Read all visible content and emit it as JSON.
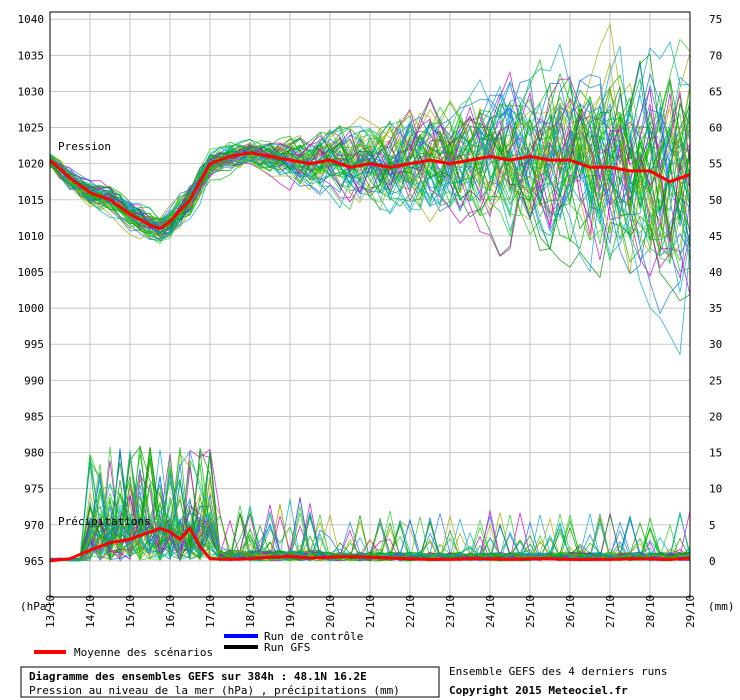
{
  "chart_data": {
    "type": "line",
    "title": "Diagramme des ensembles GEFS sur 384h : 48.1N 16.2E",
    "subtitle": "Pression au niveau de la mer (hPa) , précipitations (mm)",
    "left_axis": {
      "unit": "(hPa)",
      "ylim": [
        960,
        1041
      ],
      "ticks": [
        965,
        970,
        975,
        980,
        985,
        990,
        995,
        1000,
        1005,
        1010,
        1015,
        1020,
        1025,
        1030,
        1035,
        1040
      ]
    },
    "right_axis": {
      "unit": "(mm)",
      "ylim": [
        -5,
        76
      ],
      "ticks": [
        0,
        5,
        10,
        15,
        20,
        25,
        30,
        35,
        40,
        45,
        50,
        55,
        60,
        65,
        70,
        75
      ]
    },
    "x_axis": {
      "tick_labels": [
        "13/10",
        "14/10",
        "15/10",
        "16/10",
        "17/10",
        "18/10",
        "19/10",
        "20/10",
        "21/10",
        "22/10",
        "23/10",
        "24/10",
        "25/10",
        "26/10",
        "27/10",
        "28/10",
        "29/10"
      ],
      "day_range": [
        0,
        16
      ]
    },
    "grid": true,
    "panel_labels": {
      "pressure": "Pression",
      "precipitation": "Précipitations"
    },
    "series": [
      {
        "name": "Moyenne des scénarios",
        "color": "#ff0000",
        "axis": "left",
        "x": [
          0,
          0.5,
          1,
          1.5,
          2,
          2.5,
          2.75,
          3,
          3.5,
          4,
          4.5,
          5,
          5.5,
          6,
          6.5,
          7,
          7.5,
          8,
          8.5,
          9,
          9.5,
          10,
          10.5,
          11,
          11.5,
          12,
          12.5,
          13,
          13.5,
          14,
          14.5,
          15,
          15.5,
          16
        ],
        "values": [
          1020.5,
          1018,
          1016,
          1015,
          1013,
          1011.5,
          1011,
          1012,
          1015,
          1020,
          1021,
          1021.5,
          1021,
          1020.5,
          1020,
          1020.5,
          1019.5,
          1020,
          1019.5,
          1020,
          1020.5,
          1020,
          1020.5,
          1021,
          1020.5,
          1021,
          1020.5,
          1020.5,
          1019.5,
          1019.5,
          1019,
          1019,
          1017.5,
          1018.5
        ]
      },
      {
        "name": "Moyenne des scénarios (précipitations)",
        "color": "#ff0000",
        "axis": "right",
        "x": [
          0,
          0.5,
          1,
          1.5,
          2,
          2.5,
          2.75,
          3,
          3.25,
          3.5,
          3.75,
          4,
          4.5,
          5,
          5.5,
          6,
          6.5,
          7,
          7.5,
          8,
          8.5,
          9,
          9.5,
          10,
          10.5,
          11,
          11.5,
          12,
          12.5,
          13,
          13.5,
          14,
          14.5,
          15,
          15.5,
          16
        ],
        "values": [
          0,
          0.3,
          1.5,
          2.5,
          3,
          4,
          4.5,
          4,
          3,
          4.5,
          2,
          0.3,
          0.2,
          0.3,
          0.5,
          0.6,
          0.4,
          0.5,
          0.6,
          0.5,
          0.4,
          0.3,
          0.2,
          0.2,
          0.3,
          0.3,
          0.2,
          0.3,
          0.3,
          0.2,
          0.2,
          0.2,
          0.3,
          0.3,
          0.2,
          0.4
        ]
      }
    ],
    "legend": [
      {
        "label": "Moyenne des scénarios",
        "color": "#ff0000"
      },
      {
        "label": "Run de contrôle",
        "color": "#0000ff"
      },
      {
        "label": "Run GFS",
        "color": "#000000"
      }
    ]
  },
  "footer": {
    "right_line1": "Ensemble GEFS des 4 derniers runs",
    "right_line2": "Copyright 2015 Meteociel.fr"
  },
  "colors": {
    "grid": "#c8c8c8",
    "ensemble": [
      "#00bb00",
      "#22cc22",
      "#009900",
      "#00aacc",
      "#1177ee",
      "#cc00cc",
      "#aaaa00"
    ]
  }
}
